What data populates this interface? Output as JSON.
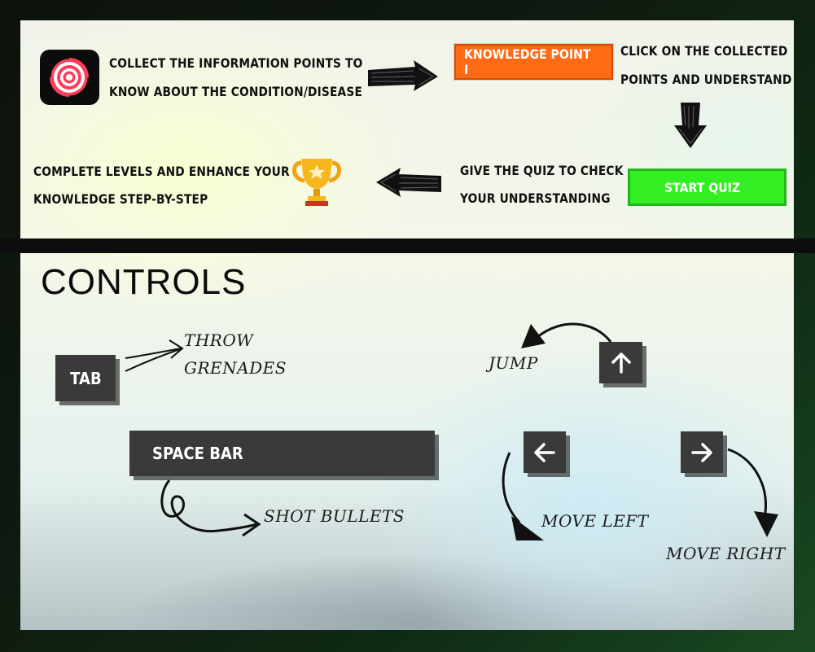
{
  "how_to": {
    "step1_text_line1": "COLLECT THE INFORMATION POINTS TO",
    "step1_text_line2": "KNOW ABOUT THE CONDITION/DISEASE",
    "knowledge_button_label": "KNOWLEDGE POINT I",
    "step2_text_line1": "CLICK ON THE COLLECTED",
    "step2_text_line2": "POINTS AND UNDERSTAND",
    "step3_text_line1": "GIVE THE QUIZ TO CHECK",
    "step3_text_line2": "YOUR UNDERSTANDING",
    "quiz_button_label": "START QUIZ",
    "step4_text_line1": "COMPLETE LEVELS AND ENHANCE YOUR",
    "step4_text_line2": "KNOWLEDGE STEP-BY-STEP"
  },
  "controls": {
    "title": "CONTROLS",
    "tab_key": "TAB",
    "tab_action_line1": "THROW",
    "tab_action_line2": "GRENADES",
    "space_key": "SPACE BAR",
    "space_action": "SHOT BULLETS",
    "jump_label": "JUMP",
    "move_left_label": "MOVE LEFT",
    "move_right_label": "MOVE RIGHT"
  },
  "icons": {
    "app": "target-icon",
    "trophy": "trophy-icon",
    "up": "arrow-up-icon",
    "left": "arrow-left-icon",
    "right": "arrow-right-icon"
  },
  "colors": {
    "orange_button": "#ff6a14",
    "green_button": "#33ee22",
    "key_bg": "#3a3a3a"
  }
}
